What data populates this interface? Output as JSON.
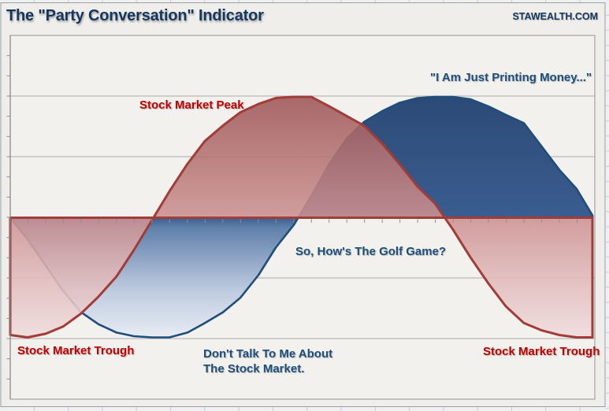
{
  "header": {
    "title": "The \"Party Conversation\" Indicator",
    "brand": "STAWEALTH.COM"
  },
  "chart_data": {
    "type": "area",
    "title": "The \"Party Conversation\" Indicator",
    "xlabel": "",
    "ylabel": "",
    "x_axis": {
      "tick_labels": [],
      "minor_tick_intervals": 33,
      "labels_visible": false
    },
    "y_axis": {
      "tick_labels": [],
      "major_gridline_intervals": 6,
      "minor_tick_intervals": 18,
      "labels_visible": false,
      "zero_baseline": true
    },
    "grid": "horizontal-only",
    "legend": "none",
    "value_scale_note": "no numeric axis labels; values normalized, peak = +1, trough = -1, baseline = 0",
    "series": [
      {
        "name": "Party Conversation (blue wave)",
        "line_color": "#1F4E79",
        "line_width": 2.6,
        "fill_gradient": [
          {
            "offset": 0,
            "color": "#2C4A76",
            "opacity": 1
          },
          {
            "offset": 0.5,
            "color": "#3A5D90",
            "opacity": 1
          },
          {
            "offset": 0.54,
            "color": "#5E81AA",
            "opacity": 1
          },
          {
            "offset": 0.63,
            "color": "#8099BD",
            "opacity": 1
          },
          {
            "offset": 0.8,
            "color": "#BECBDF",
            "opacity": 1
          },
          {
            "offset": 1,
            "color": "#E9EDF4",
            "opacity": 1
          }
        ],
        "points": [
          [
            0.0,
            0.0
          ],
          [
            0.0297,
            -0.18
          ],
          [
            0.0606,
            -0.4
          ],
          [
            0.0903,
            -0.61
          ],
          [
            0.1213,
            -0.79
          ],
          [
            0.1509,
            -0.89
          ],
          [
            0.1819,
            -0.96
          ],
          [
            0.2116,
            -0.99
          ],
          [
            0.2426,
            -1.0
          ],
          [
            0.2722,
            -1.0
          ],
          [
            0.3032,
            -0.96
          ],
          [
            0.3329,
            -0.88
          ],
          [
            0.3639,
            -0.79
          ],
          [
            0.3935,
            -0.67
          ],
          [
            0.4245,
            -0.48
          ],
          [
            0.4542,
            -0.25
          ],
          [
            0.4852,
            -0.06
          ],
          [
            0.5148,
            0.18
          ],
          [
            0.5458,
            0.45
          ],
          [
            0.5755,
            0.66
          ],
          [
            0.6051,
            0.8
          ],
          [
            0.6361,
            0.89
          ],
          [
            0.6658,
            0.96
          ],
          [
            0.6968,
            1.0
          ],
          [
            0.7264,
            1.01
          ],
          [
            0.7574,
            1.01
          ],
          [
            0.7871,
            0.99
          ],
          [
            0.8181,
            0.93
          ],
          [
            0.8477,
            0.86
          ],
          [
            0.8787,
            0.79
          ],
          [
            0.9084,
            0.6
          ],
          [
            0.9394,
            0.4
          ],
          [
            0.969,
            0.24
          ],
          [
            0.996,
            0.02
          ]
        ]
      },
      {
        "name": "Stock Market (red wave)",
        "line_color": "#A23C38",
        "line_width": 3,
        "fill_gradient": [
          {
            "offset": 0,
            "color": "#9E5656",
            "opacity": 0.88
          },
          {
            "offset": 0.5,
            "color": "#CC9191",
            "opacity": 0.88
          },
          {
            "offset": 0.75,
            "color": "#E0BABA",
            "opacity": 0.88
          },
          {
            "offset": 1,
            "color": "#F0DDDD",
            "opacity": 0.88
          }
        ],
        "points": [
          [
            0.0,
            -0.98
          ],
          [
            0.0297,
            -1.0
          ],
          [
            0.0606,
            -0.97
          ],
          [
            0.0903,
            -0.91
          ],
          [
            0.1213,
            -0.8
          ],
          [
            0.1509,
            -0.66
          ],
          [
            0.1819,
            -0.49
          ],
          [
            0.2116,
            -0.27
          ],
          [
            0.2426,
            -0.02
          ],
          [
            0.2722,
            0.22
          ],
          [
            0.3032,
            0.45
          ],
          [
            0.3329,
            0.64
          ],
          [
            0.3639,
            0.77
          ],
          [
            0.3935,
            0.88
          ],
          [
            0.4245,
            0.95
          ],
          [
            0.4542,
            1.0
          ],
          [
            0.4852,
            1.01
          ],
          [
            0.5148,
            1.01
          ],
          [
            0.5458,
            0.93
          ],
          [
            0.5755,
            0.85
          ],
          [
            0.6051,
            0.77
          ],
          [
            0.6361,
            0.62
          ],
          [
            0.6658,
            0.45
          ],
          [
            0.6968,
            0.26
          ],
          [
            0.7264,
            0.12
          ],
          [
            0.7574,
            -0.1
          ],
          [
            0.7871,
            -0.33
          ],
          [
            0.8181,
            -0.55
          ],
          [
            0.8477,
            -0.74
          ],
          [
            0.8787,
            -0.88
          ],
          [
            0.9084,
            -0.94
          ],
          [
            0.9394,
            -0.98
          ],
          [
            0.969,
            -1.0
          ],
          [
            0.996,
            -1.0
          ]
        ]
      }
    ],
    "annotations": [
      {
        "id": "peak-red",
        "text": "Stock Market Peak",
        "series": "Stock Market",
        "color": "#C00000"
      },
      {
        "id": "printing-money",
        "text": "\"I Am Just Printing Money...\"",
        "series": "Party Conversation",
        "color": "#1F4E79"
      },
      {
        "id": "golf-game",
        "text": "So, How's The Golf Game?",
        "series": "Party Conversation",
        "color": "#1F4E79"
      },
      {
        "id": "dont-talk-1",
        "text": "Don't Talk To Me About",
        "series": "Party Conversation",
        "color": "#1F4E79"
      },
      {
        "id": "dont-talk-2",
        "text": "The Stock Market.",
        "series": "Party Conversation",
        "color": "#1F4E79"
      },
      {
        "id": "trough-left",
        "text": "Stock Market Trough",
        "series": "Stock Market",
        "color": "#C00000"
      },
      {
        "id": "trough-right",
        "text": "Stock Market Trough",
        "series": "Stock Market",
        "color": "#C00000"
      }
    ],
    "colors": {
      "baseline_stroke": "#A23C38",
      "gridline": "#ABABAB",
      "plot_background": "#F2F1EE",
      "chart_background": "#EFEEEB",
      "sheet_background": "#EEF0F1",
      "sheet_cell_line": "#C6CCD2",
      "tick": "#8A8F94",
      "frame": "#9AA0A5"
    }
  }
}
